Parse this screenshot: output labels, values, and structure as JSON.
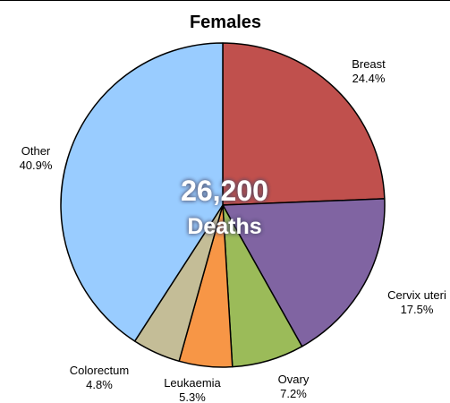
{
  "chart_data": {
    "type": "pie",
    "title": "Females",
    "center_value": "26,200",
    "center_label": "Deaths",
    "slices": [
      {
        "label": "Breast",
        "display": "24.4%",
        "value": 24.4,
        "color": "#C0504D"
      },
      {
        "label": "Cervix uteri",
        "display": "17.5%",
        "value": 17.5,
        "color": "#8064A2"
      },
      {
        "label": "Ovary",
        "display": "7.2%",
        "value": 7.2,
        "color": "#9BBB59"
      },
      {
        "label": "Leukaemia",
        "display": "5.3%",
        "value": 5.3,
        "color": "#F79646"
      },
      {
        "label": "Colorectum",
        "display": "4.8%",
        "value": 4.8,
        "color": "#C4BD97"
      },
      {
        "label": "Other",
        "display": "40.9%",
        "value": 40.9,
        "color": "#99CCFF"
      }
    ]
  }
}
